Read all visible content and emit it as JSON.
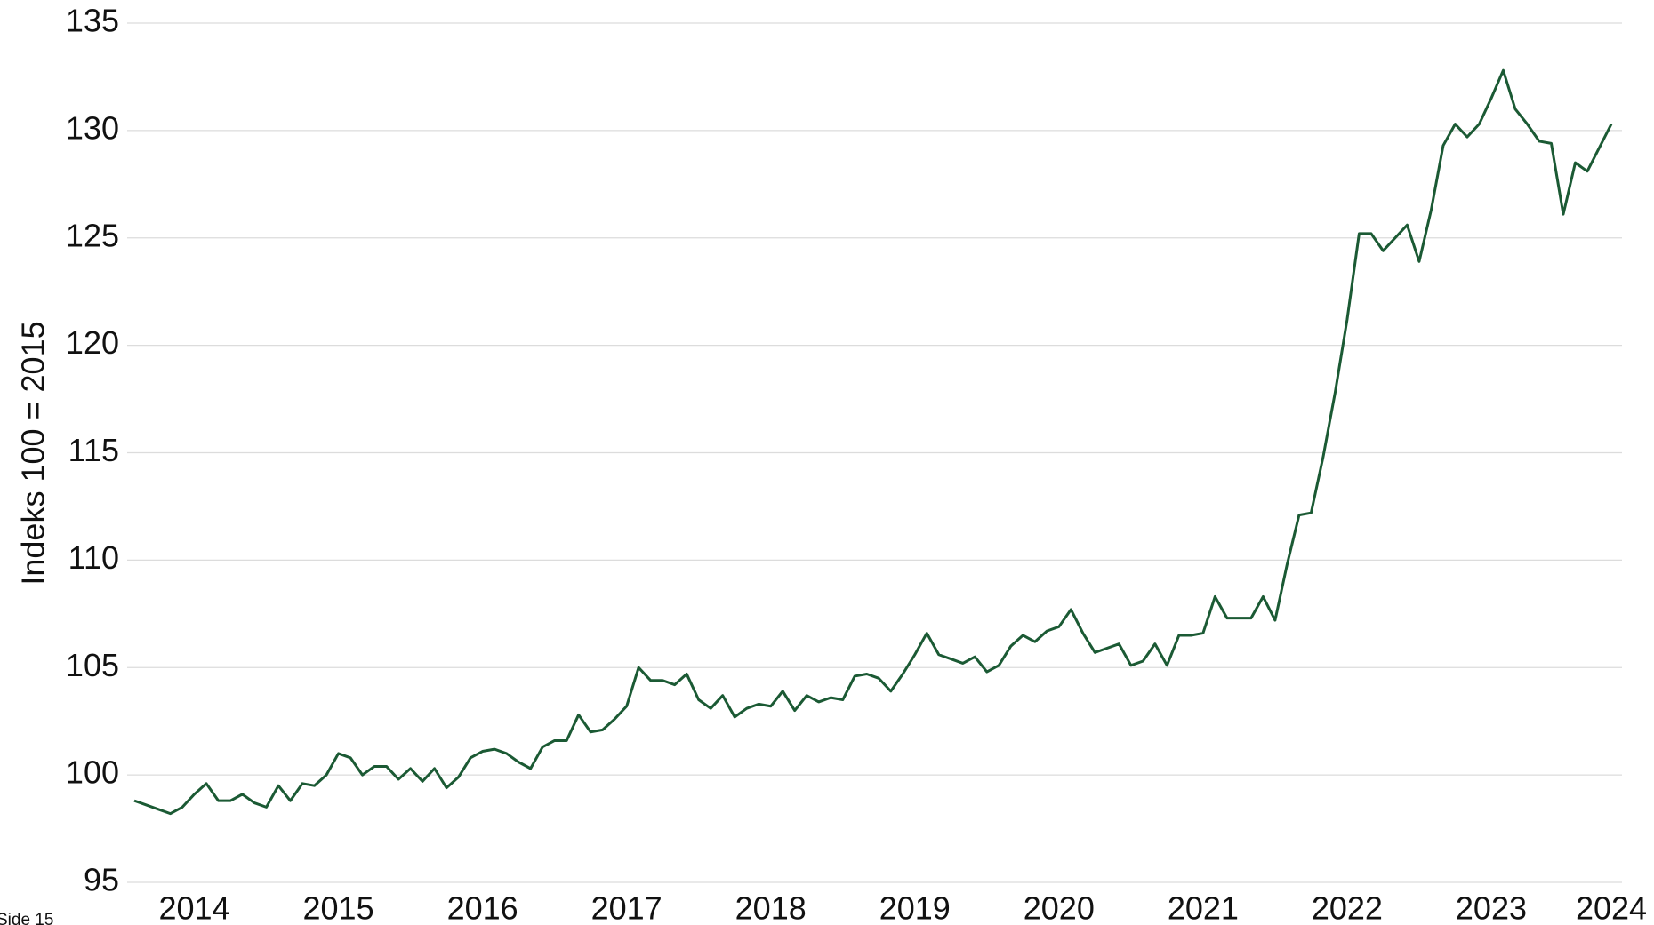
{
  "chart_data": {
    "type": "line",
    "ylabel": "Indeks 100 = 2015",
    "footer": "Side 15",
    "categories": [
      null,
      null,
      null,
      null,
      null,
      "2014",
      null,
      null,
      null,
      null,
      null,
      null,
      null,
      null,
      null,
      null,
      null,
      "2015",
      null,
      null,
      null,
      null,
      null,
      null,
      null,
      null,
      null,
      null,
      null,
      "2016",
      null,
      null,
      null,
      null,
      null,
      null,
      null,
      null,
      null,
      null,
      null,
      "2017",
      null,
      null,
      null,
      null,
      null,
      null,
      null,
      null,
      null,
      null,
      null,
      "2018",
      null,
      null,
      null,
      null,
      null,
      null,
      null,
      null,
      null,
      null,
      null,
      "2019",
      null,
      null,
      null,
      null,
      null,
      null,
      null,
      null,
      null,
      null,
      null,
      "2020",
      null,
      null,
      null,
      null,
      null,
      null,
      null,
      null,
      null,
      null,
      null,
      "2021",
      null,
      null,
      null,
      null,
      null,
      null,
      null,
      null,
      null,
      null,
      null,
      "2022",
      null,
      null,
      null,
      null,
      null,
      null,
      null,
      null,
      null,
      null,
      null,
      "2023",
      null,
      null,
      null,
      null,
      null,
      null,
      null,
      null,
      null,
      "2024"
    ],
    "series": [
      {
        "name": "Indeks",
        "color": "#1b5a34",
        "values": [
          98.8,
          98.6,
          98.4,
          98.2,
          98.5,
          99.1,
          99.6,
          98.8,
          98.8,
          99.1,
          98.7,
          98.5,
          99.5,
          98.8,
          99.6,
          99.5,
          100.0,
          101.0,
          100.8,
          100.0,
          100.4,
          100.4,
          99.8,
          100.3,
          99.7,
          100.3,
          99.4,
          99.9,
          100.8,
          101.1,
          101.2,
          101.0,
          100.6,
          100.3,
          101.3,
          101.6,
          101.6,
          102.8,
          102.0,
          102.1,
          102.6,
          103.2,
          105.0,
          104.4,
          104.4,
          104.2,
          104.7,
          103.5,
          103.1,
          103.7,
          102.7,
          103.1,
          103.3,
          103.2,
          103.9,
          103.0,
          103.7,
          103.4,
          103.6,
          103.5,
          104.6,
          104.7,
          104.5,
          103.9,
          104.7,
          105.6,
          106.6,
          105.6,
          105.4,
          105.2,
          105.5,
          104.8,
          105.1,
          106.0,
          106.5,
          106.2,
          106.7,
          106.9,
          107.7,
          106.6,
          105.7,
          105.9,
          106.1,
          105.1,
          105.3,
          106.1,
          105.1,
          106.5,
          106.5,
          106.6,
          108.3,
          107.3,
          107.3,
          107.3,
          108.3,
          107.2,
          109.8,
          112.1,
          112.2,
          114.8,
          117.8,
          121.2,
          125.2,
          125.2,
          124.4,
          125.0,
          125.6,
          123.9,
          126.3,
          129.3,
          130.3,
          129.7,
          130.3,
          131.5,
          132.8,
          131.0,
          130.3,
          129.5,
          129.4,
          126.1,
          128.5,
          128.1,
          129.2,
          130.3
        ]
      }
    ],
    "ylim": [
      95,
      135
    ],
    "yticks": [
      95,
      100,
      105,
      110,
      115,
      120,
      125,
      130,
      135
    ],
    "grid": true
  }
}
